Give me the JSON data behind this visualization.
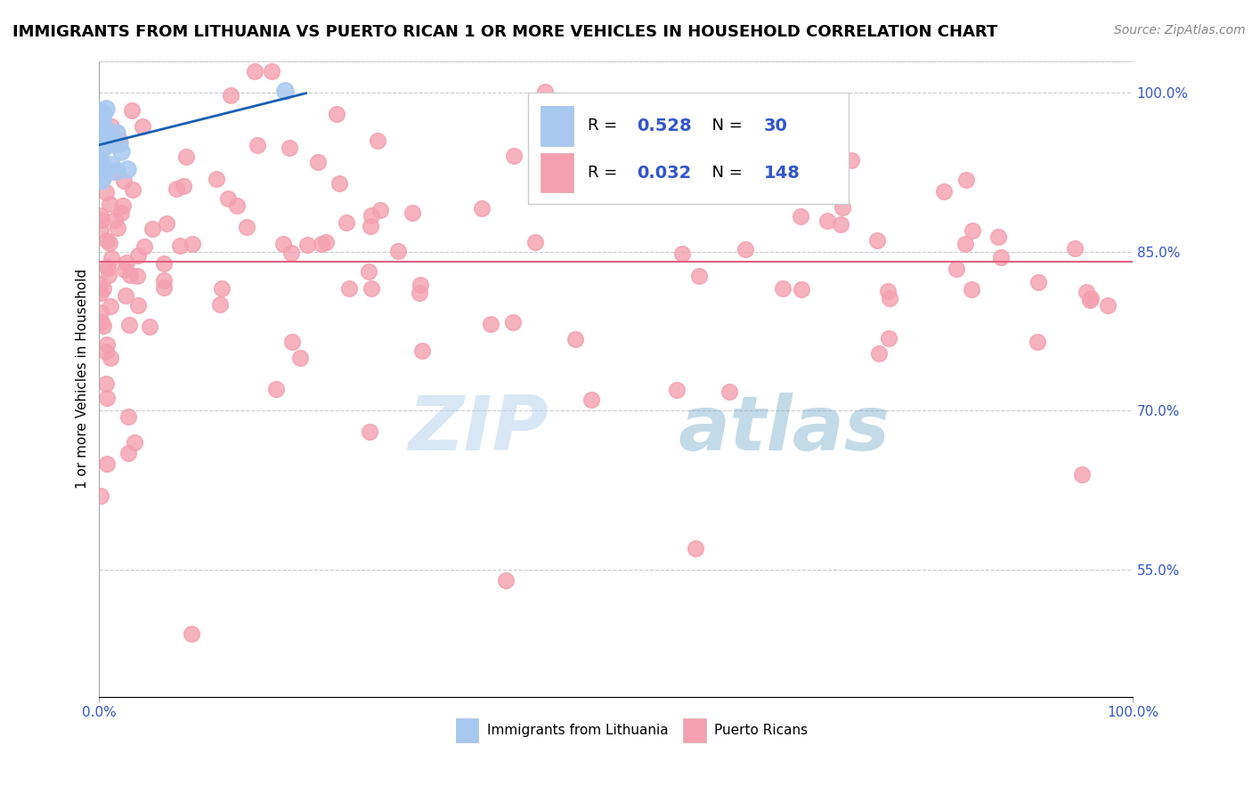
{
  "title": "IMMIGRANTS FROM LITHUANIA VS PUERTO RICAN 1 OR MORE VEHICLES IN HOUSEHOLD CORRELATION CHART",
  "source": "Source: ZipAtlas.com",
  "ylabel": "1 or more Vehicles in Household",
  "xlim": [
    0.0,
    100.0
  ],
  "ylim": [
    43.0,
    103.0
  ],
  "right_yticks": [
    55.0,
    70.0,
    85.0,
    100.0
  ],
  "watermark_zip": "ZIP",
  "watermark_atlas": "atlas",
  "legend_blue_R": "0.528",
  "legend_blue_N": "30",
  "legend_pink_R": "0.032",
  "legend_pink_N": "148",
  "blue_color": "#a8c8f0",
  "pink_color": "#f4a0b0",
  "blue_line_color": "#1a5fb4",
  "pink_line_color": "#e06080",
  "title_fontsize": 13,
  "source_fontsize": 10
}
